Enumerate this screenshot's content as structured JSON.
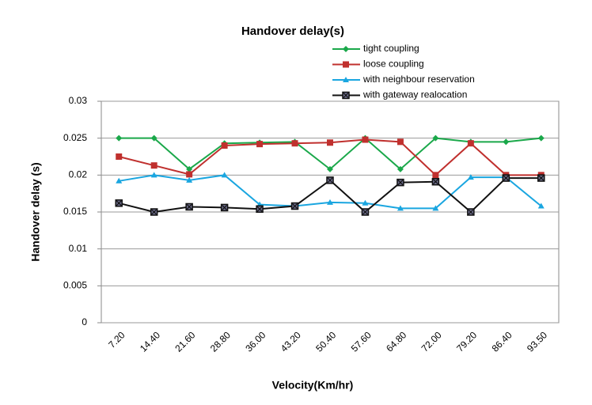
{
  "chart_data": {
    "type": "line",
    "title": "Handover delay(s)",
    "x_label": "Velocity(Km/hr)",
    "y_label": "Handover delay (s)",
    "categories": [
      "7.20",
      "14.40",
      "21.60",
      "28.80",
      "36.00",
      "43.20",
      "50.40",
      "57.60",
      "64.80",
      "72.00",
      "79.20",
      "86.40",
      "93.50"
    ],
    "series": [
      {
        "name": "tight coupling",
        "color": "#1aa84a",
        "marker": "diamond",
        "values": [
          0.025,
          0.025,
          0.0208,
          0.0243,
          0.0244,
          0.0245,
          0.0208,
          0.025,
          0.0208,
          0.025,
          0.0245,
          0.0245,
          0.025
        ]
      },
      {
        "name": "loose coupling",
        "color": "#c0302e",
        "marker": "square",
        "values": [
          0.0225,
          0.0213,
          0.0201,
          0.024,
          0.0242,
          0.0243,
          0.0244,
          0.0248,
          0.0245,
          0.02,
          0.0243,
          0.02,
          0.02
        ]
      },
      {
        "name": "with neighbour reservation",
        "color": "#1aa6e0",
        "marker": "triangle",
        "values": [
          0.0192,
          0.02,
          0.0193,
          0.02,
          0.016,
          0.0158,
          0.0163,
          0.0162,
          0.0155,
          0.0155,
          0.0197,
          0.0197,
          0.0158
        ]
      },
      {
        "name": "with gateway realocation",
        "color": "#111111",
        "marker": "x-square",
        "values": [
          0.0162,
          0.015,
          0.0157,
          0.0156,
          0.0154,
          0.0158,
          0.0193,
          0.015,
          0.019,
          0.0191,
          0.015,
          0.0196,
          0.0196
        ]
      }
    ],
    "ylim": [
      0,
      0.03
    ],
    "yticks": [
      0,
      0.005,
      0.01,
      0.015,
      0.02,
      0.025,
      0.03
    ],
    "grid": true,
    "legend": "top-right"
  }
}
